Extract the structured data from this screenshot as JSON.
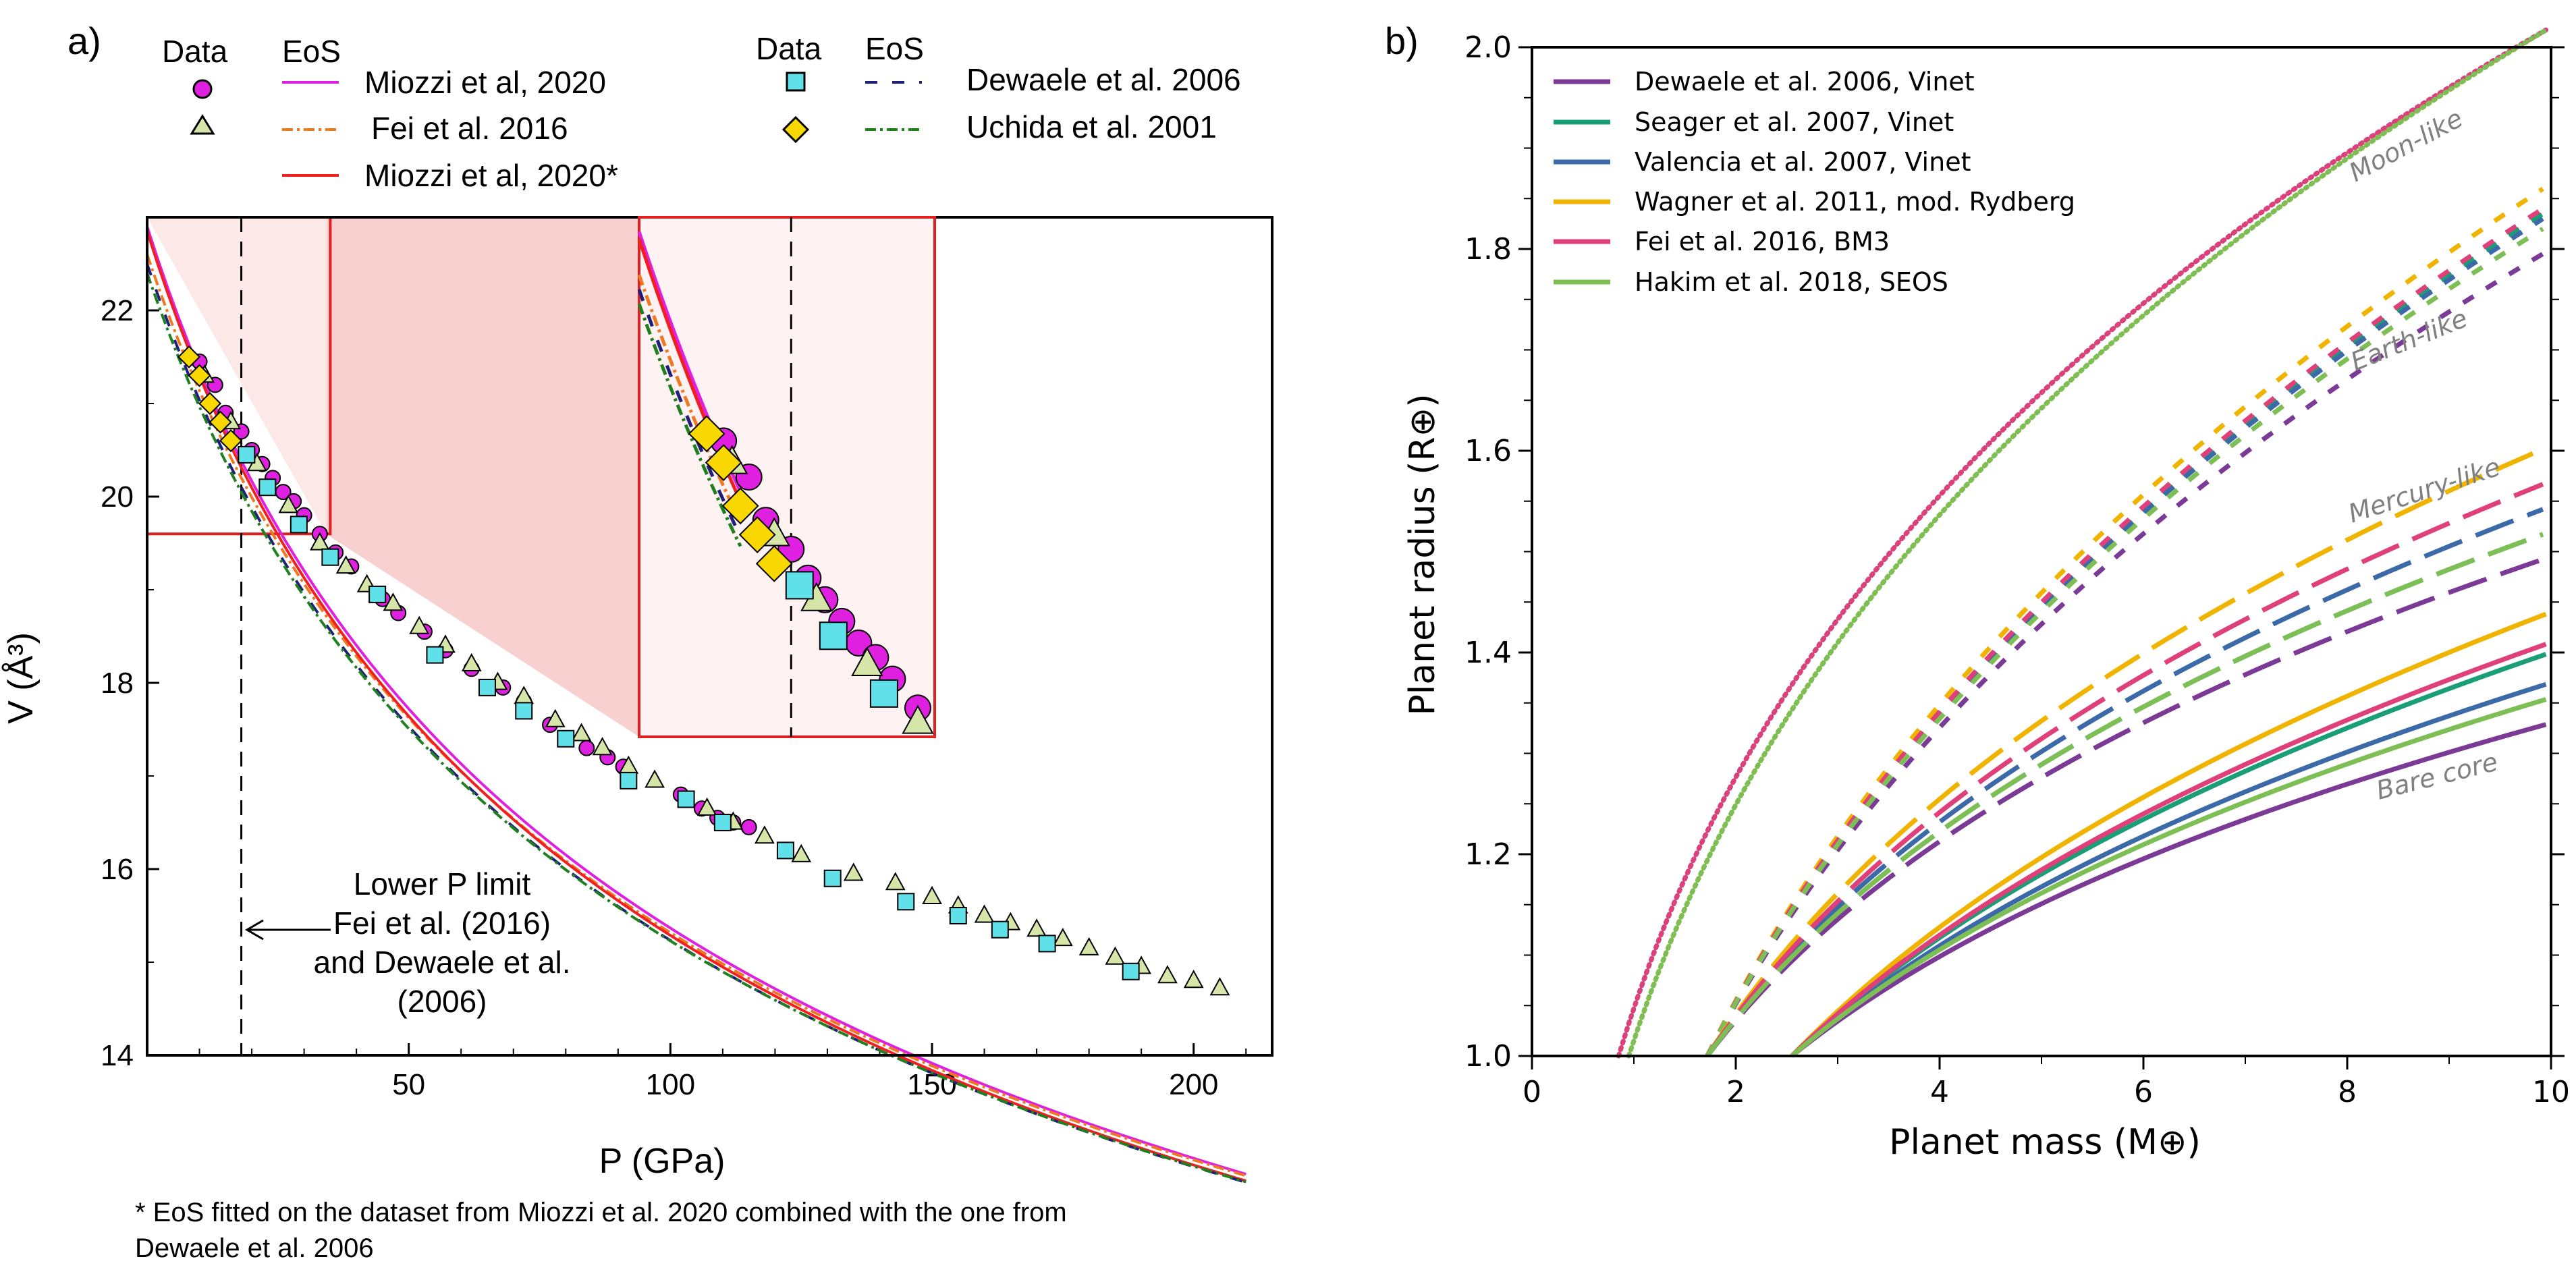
{
  "chart_data": [
    {
      "panel": "a)",
      "type": "scatter",
      "xlabel": "P (GPa)",
      "ylabel": "V (Å³)",
      "xlim": [
        0,
        215
      ],
      "ylim": [
        14,
        23
      ],
      "xticks": [
        "50",
        "100",
        "150",
        "200"
      ],
      "yticks": [
        "14",
        "16",
        "18",
        "20",
        "22"
      ],
      "legend_headers": [
        "Data",
        "EoS",
        "Data",
        "EoS"
      ],
      "legend_labels": [
        "Miozzi et al, 2020",
        "Fei et al. 2016",
        "Miozzi et al, 2020*",
        "Dewaele et al. 2006",
        "Uchida et al. 2001"
      ],
      "series": [
        {
          "name": "Miozzi et al, 2020",
          "marker": "circle",
          "color": "#e020e0",
          "eos_style": "solid",
          "x": [
            10,
            13,
            15,
            18,
            20,
            22,
            24,
            26,
            28,
            30,
            33,
            36,
            39,
            45,
            48,
            53,
            57,
            62,
            68,
            72,
            77,
            84,
            88,
            91,
            102,
            106,
            109,
            112,
            115
          ],
          "y": [
            21.45,
            21.2,
            20.9,
            20.7,
            20.5,
            20.35,
            20.2,
            20.05,
            19.95,
            19.8,
            19.6,
            19.4,
            19.25,
            18.9,
            18.75,
            18.55,
            18.35,
            18.15,
            17.95,
            17.8,
            17.55,
            17.3,
            17.2,
            17.1,
            16.8,
            16.65,
            16.55,
            16.5,
            16.45
          ]
        },
        {
          "name": "Fei et al. 2016",
          "marker": "triangle",
          "color": "#d6e6a8",
          "eos_style": "dashdot",
          "eos_color": "#f07820",
          "x": [
            11,
            16,
            21,
            27,
            33,
            38,
            42,
            47,
            52,
            57,
            62,
            67,
            72,
            78,
            83,
            87,
            92,
            97,
            107,
            112,
            118,
            125,
            135,
            143,
            150,
            155,
            160,
            165,
            170,
            175,
            180,
            185,
            190,
            195,
            200,
            205
          ],
          "y": [
            21.3,
            20.8,
            20.35,
            19.9,
            19.5,
            19.25,
            19.05,
            18.85,
            18.6,
            18.4,
            18.2,
            18.0,
            17.85,
            17.6,
            17.45,
            17.3,
            17.1,
            16.95,
            16.65,
            16.5,
            16.35,
            16.15,
            15.95,
            15.85,
            15.7,
            15.6,
            15.5,
            15.42,
            15.35,
            15.25,
            15.15,
            15.05,
            14.95,
            14.85,
            14.8,
            14.72
          ]
        },
        {
          "name": "Miozzi et al, 2020*",
          "eos_style": "solid",
          "eos_color": "#f02020"
        },
        {
          "name": "Dewaele et al. 2006",
          "marker": "square",
          "color": "#60e0e8",
          "eos_style": "dashed",
          "eos_color": "#20207a",
          "x": [
            19,
            23,
            29,
            35,
            44,
            55,
            65,
            72,
            80,
            92,
            103,
            110,
            122,
            131,
            145,
            155,
            163,
            172,
            188
          ],
          "y": [
            20.45,
            20.1,
            19.7,
            19.35,
            18.95,
            18.3,
            17.95,
            17.7,
            17.4,
            16.95,
            16.75,
            16.5,
            16.2,
            15.9,
            15.65,
            15.5,
            15.35,
            15.2,
            14.9
          ]
        },
        {
          "name": "Uchida et al. 2001",
          "marker": "diamond",
          "color": "#f8d800",
          "eos_style": "dashdot",
          "eos_color": "#208020",
          "x": [
            8,
            10,
            12,
            14,
            16
          ],
          "y": [
            21.5,
            21.3,
            21.0,
            20.8,
            20.6
          ]
        }
      ],
      "inset_xlim": [
        0,
        35
      ],
      "inset_ylim": [
        19.6,
        23
      ],
      "lower_p_limit_gpa": 18,
      "limit_annotation": [
        "Lower P limit",
        "Fei et al. (2016)",
        "and Dewaele et al.",
        "(2006)"
      ],
      "footnote": [
        "* EoS fitted on the dataset from Miozzi et al. 2020 combined with the one from",
        "Dewaele et al. 2006"
      ]
    },
    {
      "panel": "b)",
      "type": "line",
      "xlabel": "Planet mass (M⊕)",
      "ylabel": "Planet radius (R⊕)",
      "xlim": [
        0,
        10
      ],
      "ylim": [
        1.0,
        2.0
      ],
      "xticks": [
        "0",
        "2",
        "4",
        "6",
        "8",
        "10"
      ],
      "yticks": [
        "1.0",
        "1.2",
        "1.4",
        "1.6",
        "1.8",
        "2.0"
      ],
      "legend": [
        "Dewaele et al. 2006, Vinet",
        "Seager et al. 2007, Vinet",
        "Valencia et al. 2007, Vinet",
        "Wagner et al. 2011, mod. Rydberg",
        "Fei et al. 2016, BM3",
        "Hakim et al. 2018, SEOS"
      ],
      "colors": [
        "#7b3a96",
        "#1a9e77",
        "#3c6aa8",
        "#f0b400",
        "#e0407a",
        "#7dbf55"
      ],
      "annotations": [
        "Moon-like",
        "Earth-like",
        "Mercury-like",
        "Bare core"
      ],
      "families": [
        {
          "label": "Moon-like",
          "style": "dotted",
          "start_mass": 0.85,
          "end_radius": [
            2.02,
            2.02,
            2.02,
            2.02,
            2.02,
            2.02
          ]
        },
        {
          "label": "Earth-like",
          "style": "dashed",
          "start_mass": 1.72,
          "end_radius": [
            1.8,
            1.84,
            1.835,
            1.865,
            1.845,
            1.825
          ]
        },
        {
          "label": "Mercury-like",
          "style": "longdash",
          "start_mass": 1.72,
          "end_radius": [
            1.495,
            1.52,
            1.545,
            1.605,
            1.57,
            1.52
          ]
        },
        {
          "label": "Bare core",
          "style": "solid",
          "start_mass": 2.55,
          "end_radius": [
            1.33,
            1.4,
            1.37,
            1.44,
            1.41,
            1.355
          ]
        }
      ]
    }
  ]
}
